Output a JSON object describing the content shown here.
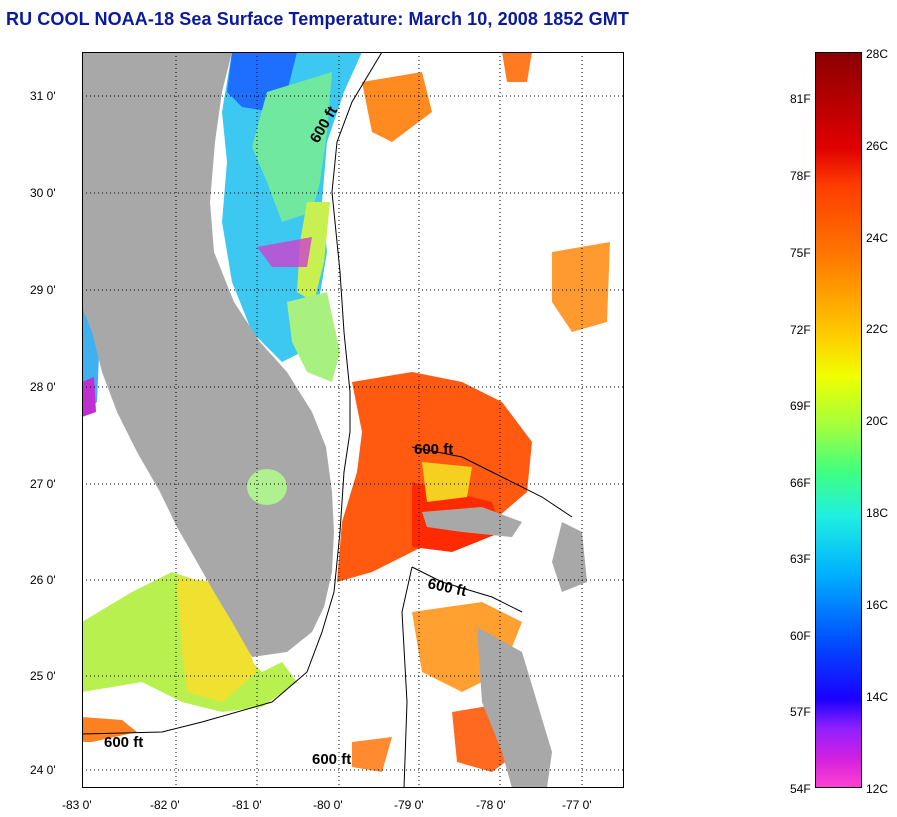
{
  "title": "RU COOL  NOAA-18  Sea Surface Temperature:  March 10, 2008 1852 GMT",
  "axes": {
    "y_ticks": [
      "31 0'",
      "30 0'",
      "29 0'",
      "28 0'",
      "27 0'",
      "26 0'",
      "25 0'",
      "24 0'"
    ],
    "x_ticks": [
      "-83 0'",
      "-82 0'",
      "-81 0'",
      "-80 0'",
      "-79 0'",
      "-78 0'",
      "-77 0'"
    ]
  },
  "contours": {
    "label": "600 ft"
  },
  "colorbar": {
    "fahrenheit": [
      "81F",
      "78F",
      "75F",
      "72F",
      "69F",
      "66F",
      "63F",
      "60F",
      "57F",
      "54F"
    ],
    "celsius": [
      "28C",
      "26C",
      "24C",
      "22C",
      "20C",
      "18C",
      "16C",
      "14C",
      "12C"
    ]
  },
  "colors": {
    "title": "#0a1aa0",
    "land": "#a8a8a8",
    "background": "#ffffff"
  }
}
